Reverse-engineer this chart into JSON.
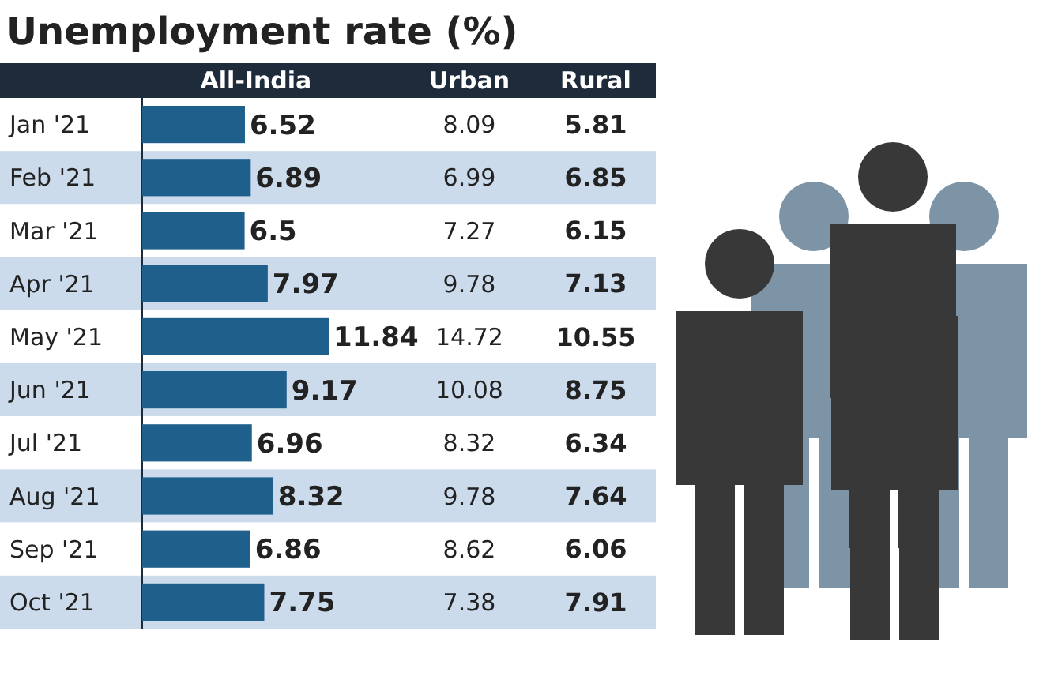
{
  "chart_data": [
    {
      "type": "bar",
      "orientation": "horizontal",
      "title": "Unemployment rate (%)",
      "categories": [
        "Jan '21",
        "Feb '21",
        "Mar '21",
        "Apr '21",
        "May '21",
        "Jun '21",
        "Jul '21",
        "Aug '21",
        "Sep '21",
        "Oct '21"
      ],
      "data_labels": true,
      "series": [
        {
          "name": "All-India",
          "color": "#1f5f8c",
          "values": [
            6.52,
            6.89,
            6.5,
            7.97,
            11.84,
            9.17,
            6.96,
            8.32,
            6.86,
            7.75
          ]
        }
      ]
    },
    {
      "type": "other",
      "series": [
        {
          "name": "Urban",
          "values": [
            8.09,
            6.99,
            7.27,
            9.78,
            14.72,
            10.08,
            8.32,
            9.78,
            8.62,
            7.38
          ]
        }
      ],
      "data_labels": true
    },
    {
      "type": "other",
      "series": [
        {
          "name": "Rural",
          "values": [
            5.81,
            6.85,
            6.15,
            7.13,
            10.55,
            8.75,
            6.34,
            7.64,
            6.06,
            7.91
          ]
        }
      ],
      "data_labels": true
    }
  ]
}
